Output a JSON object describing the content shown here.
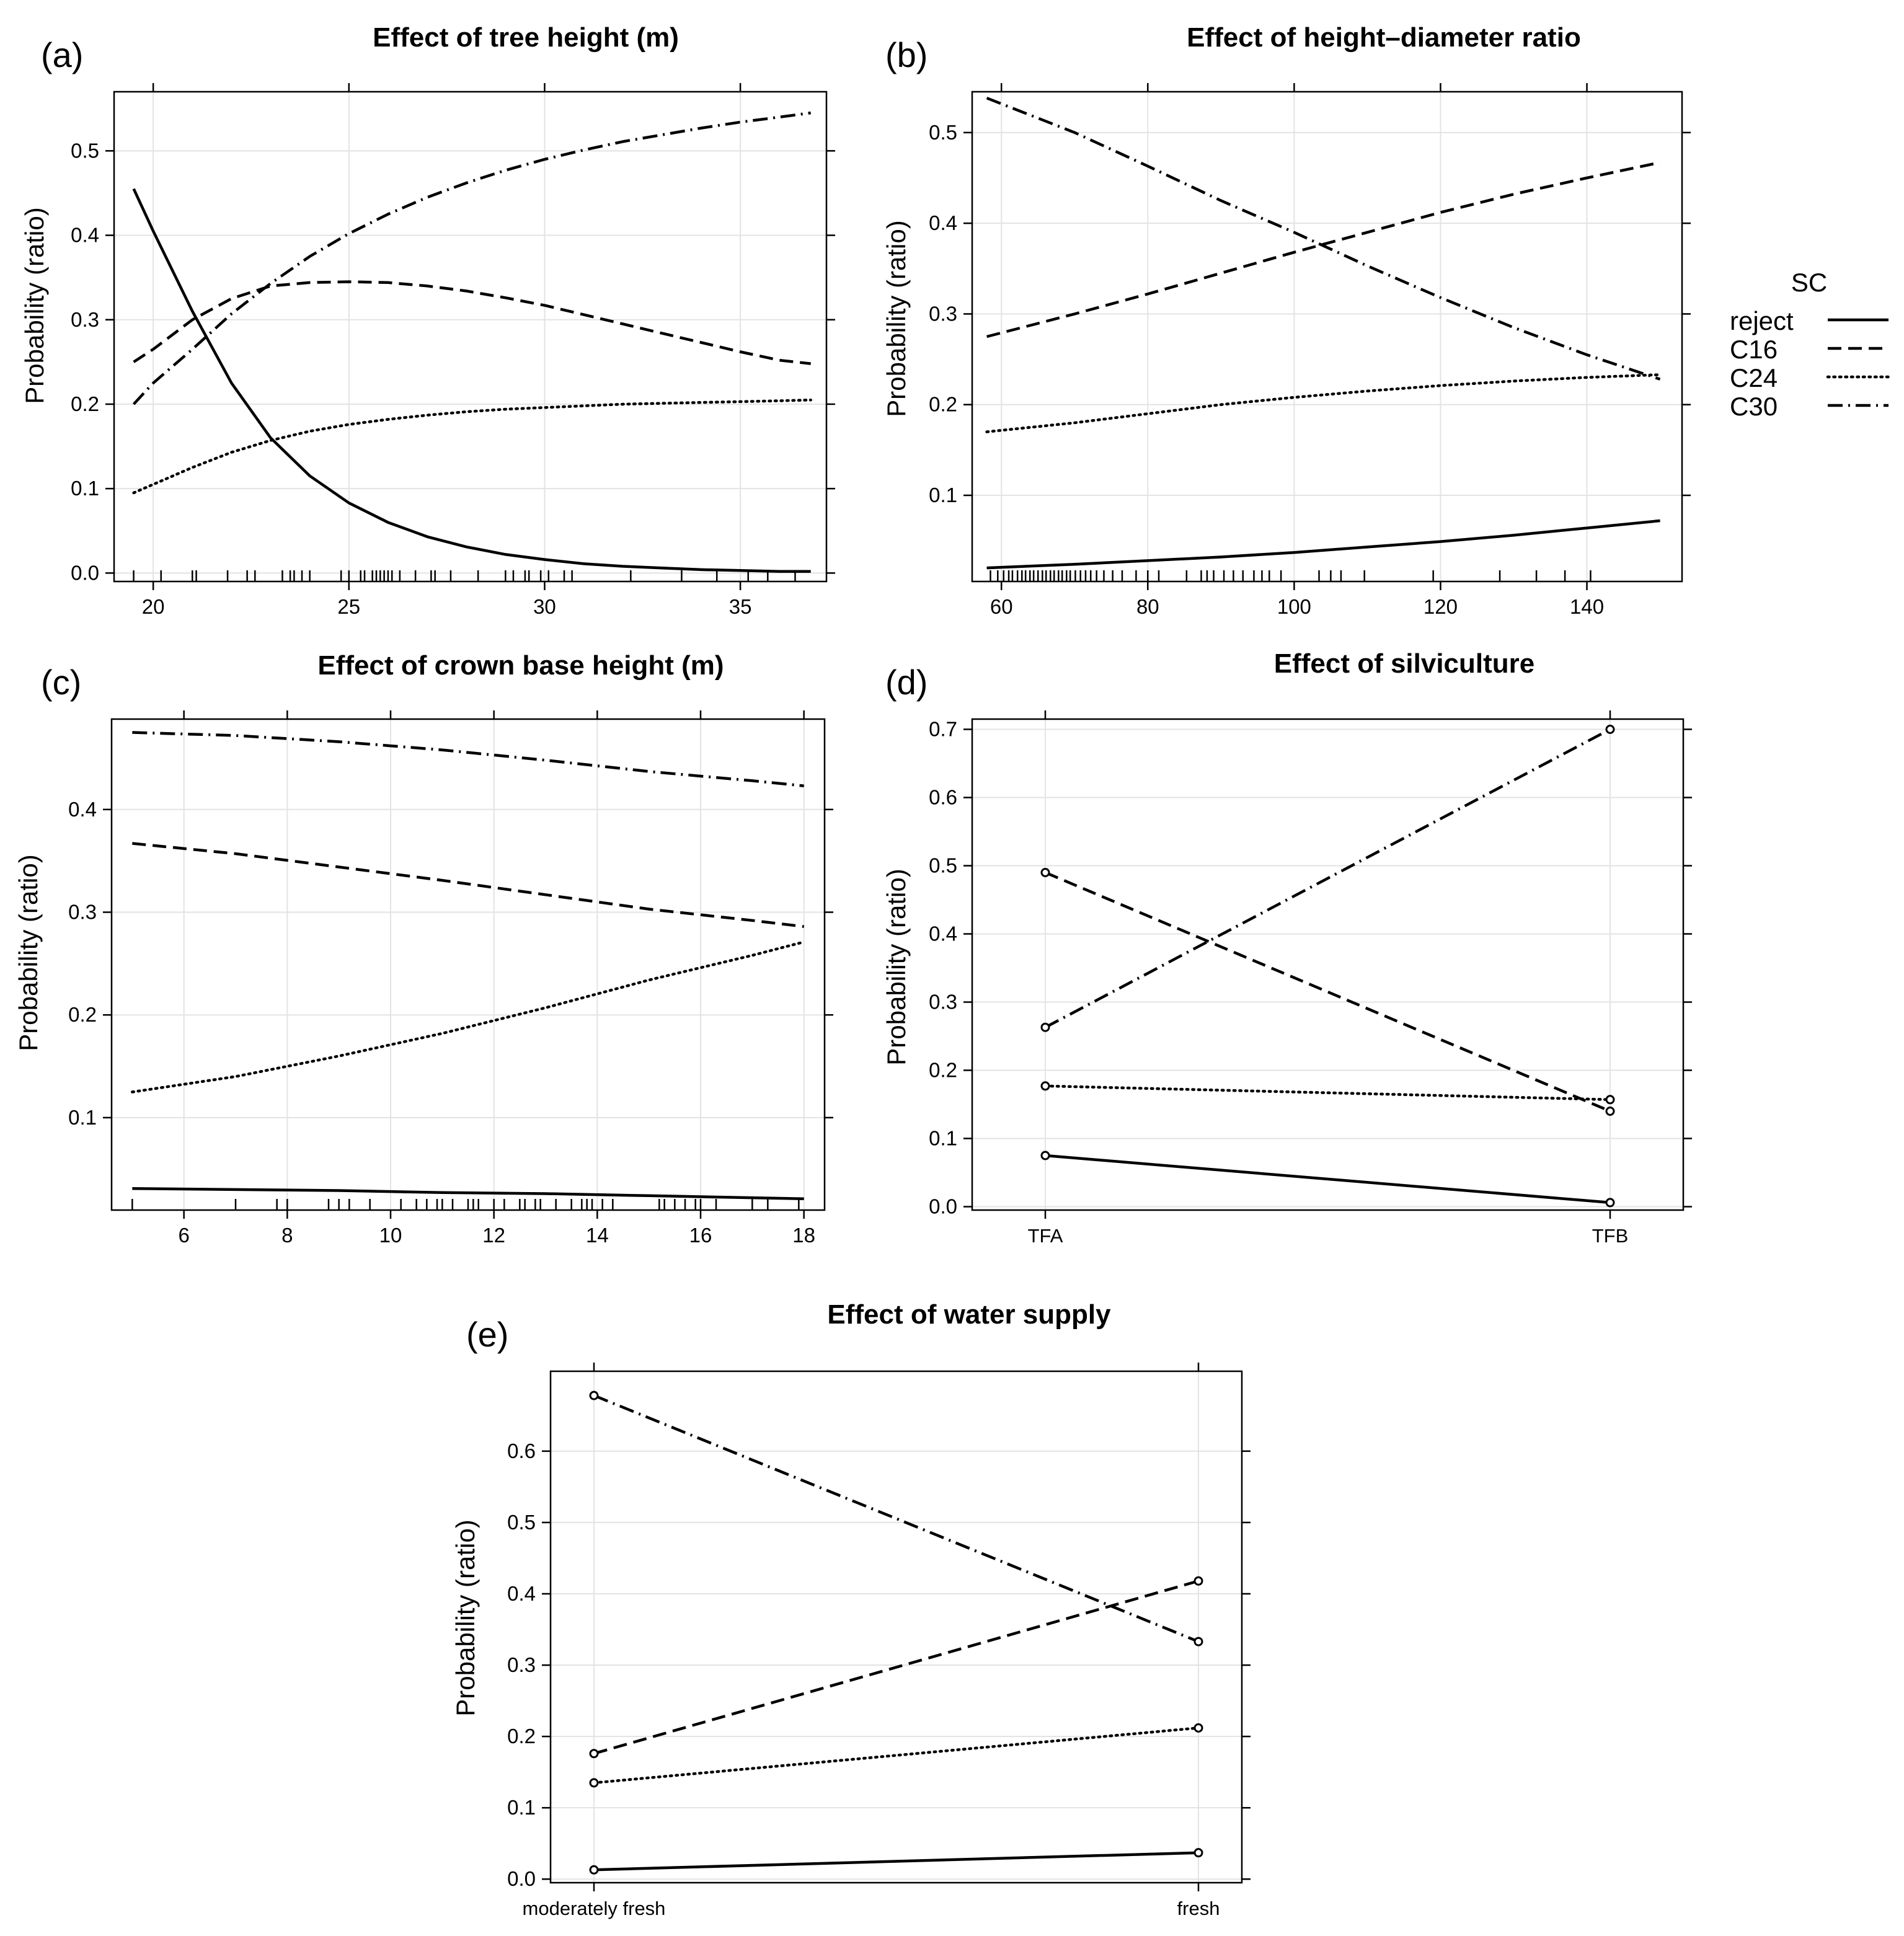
{
  "legend": {
    "title": "SC",
    "entries": [
      {
        "label": "reject",
        "style": "solid"
      },
      {
        "label": "C16",
        "style": "dashed"
      },
      {
        "label": "C24",
        "style": "dotted"
      },
      {
        "label": "C30",
        "style": "dotdash"
      }
    ]
  },
  "chart_data": [
    {
      "panel": "(a)",
      "type": "line",
      "title": "Effect of tree height (m)",
      "xlabel": "",
      "ylabel": "Probability (ratio)",
      "xlim": [
        19,
        37.2
      ],
      "ylim": [
        -0.01,
        0.57
      ],
      "xticks": [
        20,
        25,
        30,
        35
      ],
      "yticks": [
        0.0,
        0.1,
        0.2,
        0.3,
        0.4,
        0.5
      ],
      "ytick_labels": [
        "0.0",
        "0.1",
        "0.2",
        "0.3",
        "0.4",
        "0.5"
      ],
      "grid": true,
      "x": [
        19.5,
        20,
        21,
        22,
        23,
        24,
        25,
        26,
        27,
        28,
        29,
        30,
        31,
        32,
        33,
        34,
        35,
        36,
        36.8
      ],
      "series": [
        {
          "name": "reject",
          "style": "solid",
          "values": [
            0.455,
            0.405,
            0.31,
            0.225,
            0.16,
            0.115,
            0.083,
            0.06,
            0.043,
            0.031,
            0.022,
            0.016,
            0.011,
            0.008,
            0.006,
            0.004,
            0.003,
            0.002,
            0.002
          ]
        },
        {
          "name": "C16",
          "style": "dashed",
          "values": [
            0.25,
            0.265,
            0.3,
            0.325,
            0.34,
            0.344,
            0.345,
            0.344,
            0.34,
            0.334,
            0.326,
            0.317,
            0.306,
            0.295,
            0.284,
            0.273,
            0.262,
            0.252,
            0.248
          ]
        },
        {
          "name": "C24",
          "style": "dotted",
          "values": [
            0.095,
            0.105,
            0.125,
            0.143,
            0.157,
            0.168,
            0.176,
            0.182,
            0.187,
            0.191,
            0.194,
            0.196,
            0.198,
            0.2,
            0.201,
            0.202,
            0.203,
            0.204,
            0.205
          ]
        },
        {
          "name": "C30",
          "style": "dotdash",
          "values": [
            0.2,
            0.225,
            0.265,
            0.307,
            0.343,
            0.375,
            0.402,
            0.425,
            0.445,
            0.462,
            0.477,
            0.49,
            0.501,
            0.511,
            0.519,
            0.527,
            0.534,
            0.54,
            0.545
          ]
        }
      ],
      "rug": [
        19.5,
        20.2,
        21.0,
        21.1,
        21.9,
        22.4,
        22.6,
        23.3,
        23.5,
        23.6,
        23.8,
        24.0,
        24.8,
        25.0,
        25.3,
        25.4,
        25.6,
        25.7,
        25.8,
        25.9,
        26.0,
        26.1,
        26.3,
        26.7,
        27.1,
        27.2,
        27.6,
        28.3,
        29.0,
        29.2,
        29.5,
        29.6,
        29.9,
        30.1,
        30.5,
        30.7,
        32.2,
        33.5,
        34.4,
        35.2,
        35.7,
        36.4
      ]
    },
    {
      "panel": "(b)",
      "type": "line",
      "title": "Effect of height–diameter ratio",
      "xlabel": "",
      "ylabel": "Probability (ratio)",
      "xlim": [
        56,
        153
      ],
      "ylim": [
        0.005,
        0.545
      ],
      "xticks": [
        60,
        80,
        100,
        120,
        140
      ],
      "yticks": [
        0.1,
        0.2,
        0.3,
        0.4,
        0.5
      ],
      "ytick_labels": [
        "0.1",
        "0.2",
        "0.3",
        "0.4",
        "0.5"
      ],
      "grid": true,
      "x": [
        58,
        70,
        80,
        90,
        100,
        110,
        120,
        130,
        140,
        150
      ],
      "series": [
        {
          "name": "reject",
          "style": "solid",
          "values": [
            0.02,
            0.024,
            0.028,
            0.032,
            0.037,
            0.043,
            0.049,
            0.056,
            0.064,
            0.072
          ]
        },
        {
          "name": "C16",
          "style": "dashed",
          "values": [
            0.275,
            0.3,
            0.322,
            0.345,
            0.368,
            0.39,
            0.412,
            0.432,
            0.45,
            0.467
          ]
        },
        {
          "name": "C24",
          "style": "dotted",
          "values": [
            0.17,
            0.18,
            0.19,
            0.2,
            0.208,
            0.215,
            0.221,
            0.226,
            0.23,
            0.233
          ]
        },
        {
          "name": "C30",
          "style": "dotdash",
          "values": [
            0.538,
            0.5,
            0.463,
            0.425,
            0.39,
            0.353,
            0.318,
            0.285,
            0.255,
            0.228
          ]
        }
      ],
      "rug": [
        58.5,
        59.5,
        60.3,
        61.0,
        61.5,
        62.2,
        62.8,
        63.3,
        63.9,
        64.4,
        65.0,
        65.6,
        66.1,
        66.7,
        67.2,
        67.8,
        68.3,
        68.9,
        69.4,
        70.1,
        70.8,
        71.5,
        72.2,
        73.0,
        74.0,
        75.2,
        76.5,
        78.4,
        80.0,
        81.5,
        85.3,
        87.3,
        88.1,
        89.0,
        90.4,
        91.7,
        93.0,
        94.5,
        95.6,
        96.6,
        98.2,
        103.4,
        105.0,
        106.4,
        109.6,
        119.0,
        128.1,
        133.1,
        137.0,
        140.5
      ]
    },
    {
      "panel": "(c)",
      "type": "line",
      "title": "Effect of crown base height (m)",
      "xlabel": "",
      "ylabel": "Probability (ratio)",
      "xlim": [
        4.6,
        18.4
      ],
      "ylim": [
        0.01,
        0.488
      ],
      "xticks": [
        6,
        8,
        10,
        12,
        14,
        16,
        18
      ],
      "yticks": [
        0.1,
        0.2,
        0.3,
        0.4
      ],
      "ytick_labels": [
        "0.1",
        "0.2",
        "0.3",
        "0.4"
      ],
      "grid": true,
      "x": [
        5,
        7,
        9,
        11,
        13,
        15,
        17,
        18
      ],
      "series": [
        {
          "name": "reject",
          "style": "solid",
          "values": [
            0.031,
            0.03,
            0.029,
            0.027,
            0.026,
            0.024,
            0.022,
            0.021
          ]
        },
        {
          "name": "C16",
          "style": "dashed",
          "values": [
            0.367,
            0.357,
            0.344,
            0.331,
            0.317,
            0.303,
            0.292,
            0.286
          ]
        },
        {
          "name": "C24",
          "style": "dotted",
          "values": [
            0.125,
            0.14,
            0.16,
            0.182,
            0.207,
            0.234,
            0.258,
            0.271
          ]
        },
        {
          "name": "C30",
          "style": "dotdash",
          "values": [
            0.475,
            0.472,
            0.466,
            0.458,
            0.448,
            0.437,
            0.428,
            0.423
          ]
        }
      ],
      "rug": [
        5.0,
        7.0,
        7.8,
        8.0,
        8.8,
        9.0,
        9.2,
        9.6,
        10.2,
        10.5,
        10.7,
        10.9,
        11.0,
        11.2,
        11.5,
        11.6,
        11.7,
        12.0,
        12.2,
        12.5,
        12.6,
        12.8,
        12.9,
        13.2,
        13.5,
        13.7,
        13.8,
        13.9,
        14.1,
        14.3,
        15.2,
        15.3,
        15.5,
        15.7,
        15.9,
        16.0,
        16.3,
        17.0,
        17.3,
        17.9
      ]
    },
    {
      "panel": "(d)",
      "type": "line",
      "title": "Effect of silviculture",
      "xlabel": "",
      "ylabel": "Probability (ratio)",
      "ylim": [
        -0.005,
        0.715
      ],
      "yticks": [
        0.0,
        0.1,
        0.2,
        0.3,
        0.4,
        0.5,
        0.6,
        0.7
      ],
      "ytick_labels": [
        "0.0",
        "0.1",
        "0.2",
        "0.3",
        "0.4",
        "0.5",
        "0.6",
        "0.7"
      ],
      "grid": true,
      "categories": [
        "TFA",
        "TFB"
      ],
      "series": [
        {
          "name": "reject",
          "style": "solid",
          "values": [
            0.075,
            0.006
          ]
        },
        {
          "name": "C16",
          "style": "dashed",
          "values": [
            0.49,
            0.14
          ]
        },
        {
          "name": "C24",
          "style": "dotted",
          "values": [
            0.177,
            0.157
          ]
        },
        {
          "name": "C30",
          "style": "dotdash",
          "values": [
            0.263,
            0.7
          ]
        }
      ]
    },
    {
      "panel": "(e)",
      "type": "line",
      "title": "Effect of water supply",
      "xlabel": "",
      "ylabel": "Probability (ratio)",
      "ylim": [
        -0.005,
        0.712
      ],
      "yticks": [
        0.0,
        0.1,
        0.2,
        0.3,
        0.4,
        0.5,
        0.6
      ],
      "ytick_labels": [
        "0.0",
        "0.1",
        "0.2",
        "0.3",
        "0.4",
        "0.5",
        "0.6"
      ],
      "grid": true,
      "categories": [
        "moderately fresh",
        "fresh"
      ],
      "series": [
        {
          "name": "reject",
          "style": "solid",
          "values": [
            0.013,
            0.037
          ]
        },
        {
          "name": "C16",
          "style": "dashed",
          "values": [
            0.176,
            0.418
          ]
        },
        {
          "name": "C24",
          "style": "dotted",
          "values": [
            0.135,
            0.212
          ]
        },
        {
          "name": "C30",
          "style": "dotdash",
          "values": [
            0.678,
            0.333
          ]
        }
      ]
    }
  ]
}
